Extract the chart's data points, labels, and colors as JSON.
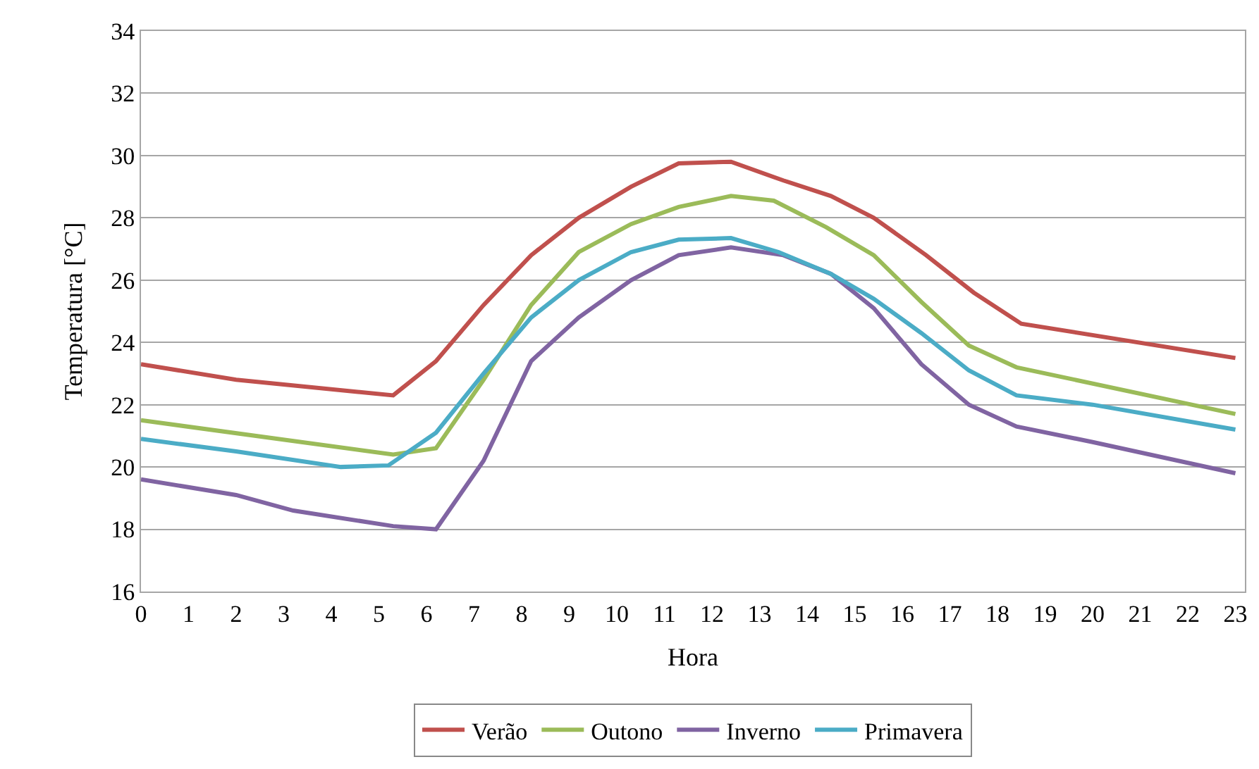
{
  "chart_data": {
    "type": "line",
    "xlabel": "Hora",
    "ylabel": "Temperatura [°C]",
    "xlim": [
      0,
      23.2
    ],
    "xticks": [
      0,
      1,
      2,
      3,
      4,
      5,
      6,
      7,
      8,
      9,
      10,
      11,
      12,
      13,
      14,
      15,
      16,
      17,
      18,
      19,
      20,
      21,
      22,
      23
    ],
    "ylim": [
      16,
      34
    ],
    "yticks": [
      16,
      18,
      20,
      22,
      24,
      26,
      28,
      30,
      32,
      34
    ],
    "grid": "y",
    "legend": "bottom",
    "line_style": "solid",
    "marker": "none",
    "series": [
      {
        "name": "Verão",
        "color": "#c0504d",
        "x": [
          0,
          2,
          5.3,
          6.2,
          7.2,
          8.2,
          9.2,
          10.3,
          11.3,
          12.4,
          13.5,
          14.5,
          15.4,
          16.5,
          17.5,
          18.5,
          23
        ],
        "values": [
          23.3,
          22.8,
          22.3,
          23.4,
          25.2,
          26.8,
          28.0,
          29.0,
          29.75,
          29.8,
          29.2,
          28.7,
          28.0,
          26.8,
          25.6,
          24.6,
          23.5
        ]
      },
      {
        "name": "Outono",
        "color": "#9bbb59",
        "x": [
          0,
          5.3,
          6.2,
          7.2,
          8.2,
          9.2,
          10.3,
          11.3,
          12.4,
          13.3,
          14.4,
          15.4,
          16.4,
          17.4,
          18.4,
          23
        ],
        "values": [
          21.5,
          20.4,
          20.6,
          22.8,
          25.2,
          26.9,
          27.8,
          28.35,
          28.7,
          28.55,
          27.7,
          26.8,
          25.3,
          23.9,
          23.2,
          21.7
        ]
      },
      {
        "name": "Inverno",
        "color": "#8064a2",
        "x": [
          0,
          2,
          3.2,
          5.3,
          6.2,
          7.2,
          8.2,
          9.2,
          10.3,
          11.3,
          12.4,
          13.5,
          14.5,
          15.4,
          16.4,
          17.4,
          18.4,
          20,
          23
        ],
        "values": [
          19.6,
          19.1,
          18.6,
          18.1,
          18.0,
          20.2,
          23.4,
          24.8,
          26.0,
          26.8,
          27.05,
          26.8,
          26.2,
          25.1,
          23.3,
          22.0,
          21.3,
          20.8,
          19.8
        ]
      },
      {
        "name": "Primavera",
        "color": "#4bacc6",
        "x": [
          0,
          2,
          4.2,
          5.2,
          6.2,
          7.2,
          8.2,
          9.2,
          10.3,
          11.3,
          12.4,
          13.4,
          14.5,
          15.4,
          16.4,
          17.4,
          18.4,
          20,
          23
        ],
        "values": [
          20.9,
          20.5,
          20.0,
          20.05,
          21.1,
          23.0,
          24.8,
          26.0,
          26.9,
          27.3,
          27.35,
          26.9,
          26.2,
          25.4,
          24.3,
          23.1,
          22.3,
          22.0,
          21.2
        ]
      }
    ]
  }
}
